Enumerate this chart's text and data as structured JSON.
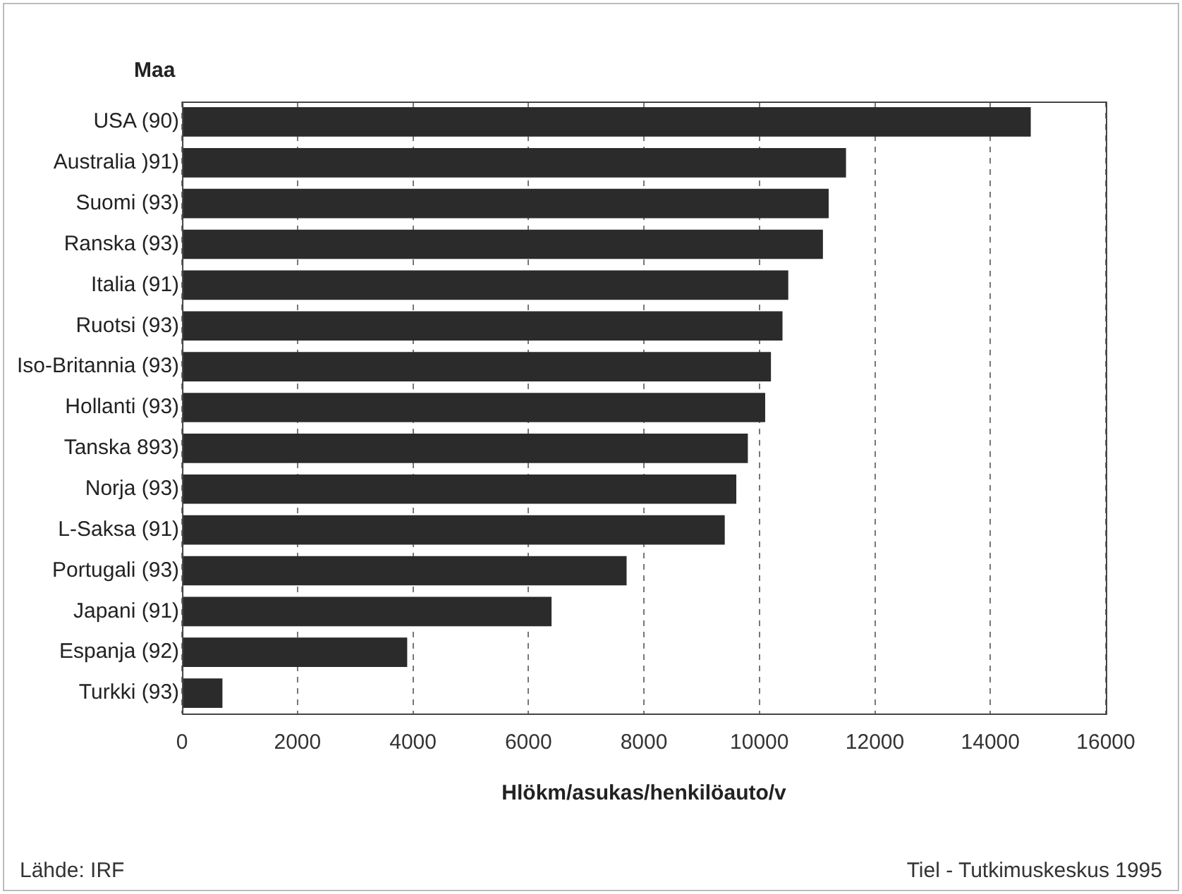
{
  "chart_data": {
    "type": "bar",
    "orientation": "horizontal",
    "ylabel": "Maa",
    "xlabel": "Hlökm/asukas/henkilöauto/v",
    "categories": [
      "USA (90)",
      "Australia )91)",
      "Suomi (93)",
      "Ranska (93)",
      "Italia (91)",
      "Ruotsi (93)",
      "Iso-Britannia (93)",
      "Hollanti (93)",
      "Tanska 893)",
      "Norja (93)",
      "L-Saksa (91)",
      "Portugali (93)",
      "Japani (91)",
      "Espanja (92)",
      "Turkki (93)"
    ],
    "values": [
      14700,
      11500,
      11200,
      11100,
      10500,
      10400,
      10200,
      10100,
      9800,
      9600,
      9400,
      7700,
      6400,
      3900,
      700
    ],
    "color": "#2b2b2b",
    "xlim": [
      0,
      16000
    ],
    "xticks": [
      0,
      2000,
      4000,
      6000,
      8000,
      10000,
      12000,
      14000,
      16000
    ],
    "grid": "x",
    "legend": false,
    "annotations": [
      "Lähde: IRF",
      "Tiel - Tutkimuskeskus 1995"
    ]
  }
}
